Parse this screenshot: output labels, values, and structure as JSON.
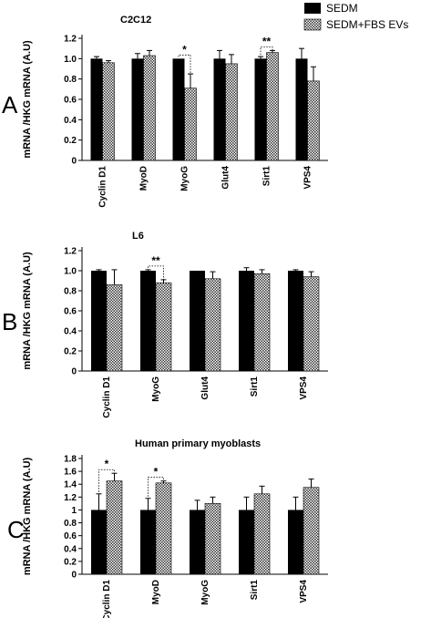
{
  "legend": {
    "items": [
      {
        "label": "SEDM",
        "pattern": "solid"
      },
      {
        "label": "SEDM+FBS EVs",
        "pattern": "checker"
      }
    ],
    "placement": "top-right"
  },
  "chart_data": [
    {
      "type": "bar",
      "panel_label": "A",
      "title": "C2C12",
      "ylabel": "mRNA /HKG mRNA (A.U)",
      "xlabel": "",
      "ylim": [
        0,
        1.2
      ],
      "yticks": [
        "0",
        "0.2",
        "0.4",
        "0.6",
        "0.8",
        "1.0",
        "1.2"
      ],
      "grid": false,
      "categories": [
        "Cyclin D1",
        "MyoD",
        "MyoG",
        "Glut4",
        "Sirt1",
        "VPS4"
      ],
      "series": [
        {
          "name": "SEDM",
          "values": [
            1.0,
            1.0,
            1.0,
            1.0,
            1.0,
            1.0
          ],
          "errors": [
            0.02,
            0.05,
            0.0,
            0.08,
            0.02,
            0.1
          ]
        },
        {
          "name": "SEDM+FBS EVs",
          "values": [
            0.96,
            1.03,
            0.71,
            0.95,
            1.06,
            0.78
          ],
          "errors": [
            0.02,
            0.05,
            0.14,
            0.09,
            0.02,
            0.14
          ]
        }
      ],
      "annotations": [
        {
          "category": "MyoG",
          "text": "*"
        },
        {
          "category": "Sirt1",
          "text": "**"
        }
      ]
    },
    {
      "type": "bar",
      "panel_label": "B",
      "title": "L6",
      "ylabel": "mRNA /HKG mRNA (A.U)",
      "xlabel": "",
      "ylim": [
        0,
        1.2
      ],
      "yticks": [
        "0",
        "0.2",
        "0.4",
        "0.6",
        "0.8",
        "1.0",
        "1.2"
      ],
      "grid": false,
      "categories": [
        "Cyclin D1",
        "MyoG",
        "Glut4",
        "Sirt1",
        "VPS4"
      ],
      "series": [
        {
          "name": "SEDM",
          "values": [
            1.0,
            1.0,
            1.0,
            1.0,
            1.0
          ],
          "errors": [
            0.01,
            0.01,
            0.0,
            0.03,
            0.01
          ]
        },
        {
          "name": "SEDM+FBS EVs",
          "values": [
            0.86,
            0.88,
            0.92,
            0.97,
            0.94
          ],
          "errors": [
            0.15,
            0.03,
            0.07,
            0.04,
            0.05
          ]
        }
      ],
      "annotations": [
        {
          "category": "MyoG",
          "text": "**"
        }
      ]
    },
    {
      "type": "bar",
      "panel_label": "C",
      "title": "Human primary myoblasts",
      "ylabel": "mRNA /HKG mRNA (A.U)",
      "xlabel": "",
      "ylim": [
        0,
        1.8
      ],
      "yticks": [
        "0",
        "0.2",
        "0.4",
        "0.6",
        "0.8",
        "1",
        "1.2",
        "1.4",
        "1.6",
        "1.8"
      ],
      "grid": false,
      "categories": [
        "Cyclin D1",
        "MyoD",
        "MyoG",
        "Sirt1",
        "VPS4"
      ],
      "series": [
        {
          "name": "SEDM",
          "values": [
            1.0,
            1.0,
            1.0,
            1.0,
            1.0
          ],
          "errors": [
            0.25,
            0.18,
            0.15,
            0.2,
            0.2
          ]
        },
        {
          "name": "SEDM+FBS EVs",
          "values": [
            1.45,
            1.42,
            1.1,
            1.25,
            1.35
          ],
          "errors": [
            0.12,
            0.03,
            0.1,
            0.12,
            0.13
          ]
        }
      ],
      "annotations": [
        {
          "category": "Cyclin D1",
          "text": "*"
        },
        {
          "category": "MyoD",
          "text": "*"
        }
      ]
    }
  ]
}
